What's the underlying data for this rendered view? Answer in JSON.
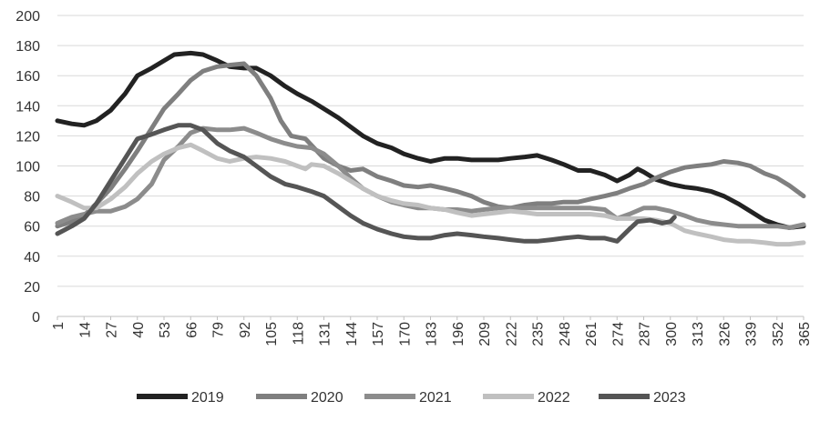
{
  "chart_data": {
    "type": "line",
    "title": "",
    "xlabel": "",
    "ylabel": "",
    "ylim": [
      0,
      200
    ],
    "y_ticks": [
      0,
      20,
      40,
      60,
      80,
      100,
      120,
      140,
      160,
      180,
      200
    ],
    "x_ticks": [
      1,
      14,
      27,
      40,
      53,
      66,
      79,
      92,
      105,
      118,
      131,
      144,
      157,
      170,
      183,
      196,
      209,
      222,
      235,
      248,
      261,
      274,
      287,
      300,
      313,
      326,
      339,
      352,
      365
    ],
    "xlim": [
      1,
      365
    ],
    "grid": "horizontal",
    "legend_position": "bottom",
    "series": [
      {
        "name": "2019",
        "color": "#222222",
        "points": [
          [
            1,
            130
          ],
          [
            8,
            128
          ],
          [
            14,
            127
          ],
          [
            20,
            130
          ],
          [
            27,
            137
          ],
          [
            34,
            148
          ],
          [
            40,
            160
          ],
          [
            47,
            165
          ],
          [
            53,
            170
          ],
          [
            58,
            174
          ],
          [
            66,
            175
          ],
          [
            72,
            174
          ],
          [
            79,
            170
          ],
          [
            85,
            166
          ],
          [
            92,
            165
          ],
          [
            98,
            165
          ],
          [
            105,
            160
          ],
          [
            112,
            153
          ],
          [
            118,
            148
          ],
          [
            125,
            143
          ],
          [
            131,
            138
          ],
          [
            138,
            132
          ],
          [
            144,
            126
          ],
          [
            150,
            120
          ],
          [
            157,
            115
          ],
          [
            164,
            112
          ],
          [
            170,
            108
          ],
          [
            177,
            105
          ],
          [
            183,
            103
          ],
          [
            190,
            105
          ],
          [
            196,
            105
          ],
          [
            203,
            104
          ],
          [
            209,
            104
          ],
          [
            216,
            104
          ],
          [
            222,
            105
          ],
          [
            229,
            106
          ],
          [
            235,
            107
          ],
          [
            242,
            104
          ],
          [
            248,
            101
          ],
          [
            255,
            97
          ],
          [
            261,
            97
          ],
          [
            268,
            94
          ],
          [
            274,
            90
          ],
          [
            280,
            94
          ],
          [
            284,
            98
          ],
          [
            287,
            96
          ],
          [
            293,
            91
          ],
          [
            300,
            88
          ],
          [
            307,
            86
          ],
          [
            313,
            85
          ],
          [
            320,
            83
          ],
          [
            326,
            80
          ],
          [
            333,
            75
          ],
          [
            339,
            70
          ],
          [
            346,
            64
          ],
          [
            352,
            61
          ],
          [
            358,
            59
          ],
          [
            365,
            60
          ]
        ]
      },
      {
        "name": "2020",
        "color": "#7f7f7f",
        "points": [
          [
            1,
            60
          ],
          [
            8,
            63
          ],
          [
            14,
            67
          ],
          [
            20,
            75
          ],
          [
            27,
            85
          ],
          [
            34,
            98
          ],
          [
            40,
            110
          ],
          [
            47,
            125
          ],
          [
            53,
            138
          ],
          [
            60,
            148
          ],
          [
            66,
            157
          ],
          [
            72,
            163
          ],
          [
            79,
            166
          ],
          [
            85,
            167
          ],
          [
            92,
            168
          ],
          [
            98,
            160
          ],
          [
            105,
            145
          ],
          [
            110,
            130
          ],
          [
            115,
            120
          ],
          [
            122,
            118
          ],
          [
            131,
            105
          ],
          [
            138,
            100
          ],
          [
            144,
            97
          ],
          [
            150,
            98
          ],
          [
            157,
            93
          ],
          [
            164,
            90
          ],
          [
            170,
            87
          ],
          [
            177,
            86
          ],
          [
            183,
            87
          ],
          [
            190,
            85
          ],
          [
            196,
            83
          ],
          [
            203,
            80
          ],
          [
            209,
            76
          ],
          [
            216,
            73
          ],
          [
            222,
            72
          ],
          [
            229,
            74
          ],
          [
            235,
            75
          ],
          [
            242,
            75
          ],
          [
            248,
            76
          ],
          [
            255,
            76
          ],
          [
            261,
            78
          ],
          [
            268,
            80
          ],
          [
            274,
            82
          ],
          [
            280,
            85
          ],
          [
            287,
            88
          ],
          [
            293,
            92
          ],
          [
            300,
            96
          ],
          [
            307,
            99
          ],
          [
            313,
            100
          ],
          [
            320,
            101
          ],
          [
            326,
            103
          ],
          [
            333,
            102
          ],
          [
            339,
            100
          ],
          [
            346,
            95
          ],
          [
            352,
            92
          ],
          [
            358,
            87
          ],
          [
            365,
            80
          ]
        ]
      },
      {
        "name": "2021",
        "color": "#8c8c8c",
        "points": [
          [
            1,
            62
          ],
          [
            8,
            66
          ],
          [
            14,
            68
          ],
          [
            20,
            70
          ],
          [
            27,
            70
          ],
          [
            34,
            73
          ],
          [
            40,
            78
          ],
          [
            47,
            88
          ],
          [
            53,
            104
          ],
          [
            60,
            113
          ],
          [
            66,
            122
          ],
          [
            72,
            125
          ],
          [
            79,
            124
          ],
          [
            85,
            124
          ],
          [
            92,
            125
          ],
          [
            98,
            122
          ],
          [
            105,
            118
          ],
          [
            112,
            115
          ],
          [
            118,
            113
          ],
          [
            125,
            112
          ],
          [
            131,
            108
          ],
          [
            138,
            100
          ],
          [
            144,
            92
          ],
          [
            150,
            85
          ],
          [
            157,
            80
          ],
          [
            164,
            76
          ],
          [
            170,
            74
          ],
          [
            177,
            72
          ],
          [
            183,
            72
          ],
          [
            190,
            71
          ],
          [
            196,
            71
          ],
          [
            203,
            70
          ],
          [
            209,
            71
          ],
          [
            216,
            72
          ],
          [
            222,
            72
          ],
          [
            229,
            72
          ],
          [
            235,
            72
          ],
          [
            242,
            72
          ],
          [
            248,
            72
          ],
          [
            255,
            72
          ],
          [
            261,
            72
          ],
          [
            268,
            71
          ],
          [
            274,
            65
          ],
          [
            280,
            68
          ],
          [
            287,
            72
          ],
          [
            293,
            72
          ],
          [
            300,
            70
          ],
          [
            307,
            67
          ],
          [
            313,
            64
          ],
          [
            320,
            62
          ],
          [
            326,
            61
          ],
          [
            333,
            60
          ],
          [
            339,
            60
          ],
          [
            346,
            60
          ],
          [
            352,
            60
          ],
          [
            358,
            59
          ],
          [
            365,
            61
          ]
        ]
      },
      {
        "name": "2022",
        "color": "#c0c0c0",
        "points": [
          [
            1,
            80
          ],
          [
            8,
            76
          ],
          [
            14,
            72
          ],
          [
            20,
            72
          ],
          [
            27,
            78
          ],
          [
            34,
            86
          ],
          [
            40,
            95
          ],
          [
            47,
            103
          ],
          [
            53,
            108
          ],
          [
            60,
            112
          ],
          [
            66,
            114
          ],
          [
            72,
            110
          ],
          [
            79,
            105
          ],
          [
            85,
            103
          ],
          [
            92,
            105
          ],
          [
            98,
            106
          ],
          [
            105,
            105
          ],
          [
            112,
            103
          ],
          [
            118,
            100
          ],
          [
            122,
            98
          ],
          [
            125,
            101
          ],
          [
            131,
            100
          ],
          [
            138,
            95
          ],
          [
            144,
            90
          ],
          [
            150,
            85
          ],
          [
            157,
            80
          ],
          [
            164,
            77
          ],
          [
            170,
            75
          ],
          [
            177,
            74
          ],
          [
            183,
            72
          ],
          [
            190,
            71
          ],
          [
            196,
            69
          ],
          [
            203,
            67
          ],
          [
            209,
            68
          ],
          [
            216,
            69
          ],
          [
            222,
            70
          ],
          [
            229,
            69
          ],
          [
            235,
            68
          ],
          [
            242,
            68
          ],
          [
            248,
            68
          ],
          [
            255,
            68
          ],
          [
            261,
            68
          ],
          [
            268,
            67
          ],
          [
            274,
            65
          ],
          [
            280,
            65
          ],
          [
            287,
            65
          ],
          [
            293,
            64
          ],
          [
            300,
            62
          ],
          [
            307,
            57
          ],
          [
            313,
            55
          ],
          [
            320,
            53
          ],
          [
            326,
            51
          ],
          [
            333,
            50
          ],
          [
            339,
            50
          ],
          [
            346,
            49
          ],
          [
            352,
            48
          ],
          [
            358,
            48
          ],
          [
            365,
            49
          ]
        ]
      },
      {
        "name": "2023",
        "color": "#555555",
        "points": [
          [
            1,
            55
          ],
          [
            8,
            60
          ],
          [
            14,
            65
          ],
          [
            20,
            75
          ],
          [
            27,
            90
          ],
          [
            34,
            105
          ],
          [
            40,
            118
          ],
          [
            47,
            121
          ],
          [
            53,
            124
          ],
          [
            60,
            127
          ],
          [
            66,
            127
          ],
          [
            72,
            124
          ],
          [
            79,
            115
          ],
          [
            85,
            110
          ],
          [
            92,
            106
          ],
          [
            98,
            100
          ],
          [
            105,
            93
          ],
          [
            112,
            88
          ],
          [
            118,
            86
          ],
          [
            125,
            83
          ],
          [
            131,
            80
          ],
          [
            138,
            73
          ],
          [
            144,
            67
          ],
          [
            150,
            62
          ],
          [
            157,
            58
          ],
          [
            164,
            55
          ],
          [
            170,
            53
          ],
          [
            177,
            52
          ],
          [
            183,
            52
          ],
          [
            190,
            54
          ],
          [
            196,
            55
          ],
          [
            203,
            54
          ],
          [
            209,
            53
          ],
          [
            216,
            52
          ],
          [
            222,
            51
          ],
          [
            229,
            50
          ],
          [
            235,
            50
          ],
          [
            242,
            51
          ],
          [
            248,
            52
          ],
          [
            255,
            53
          ],
          [
            261,
            52
          ],
          [
            268,
            52
          ],
          [
            274,
            50
          ],
          [
            280,
            58
          ],
          [
            284,
            63
          ],
          [
            290,
            64
          ],
          [
            296,
            62
          ],
          [
            300,
            63
          ],
          [
            302,
            66
          ]
        ]
      }
    ]
  }
}
